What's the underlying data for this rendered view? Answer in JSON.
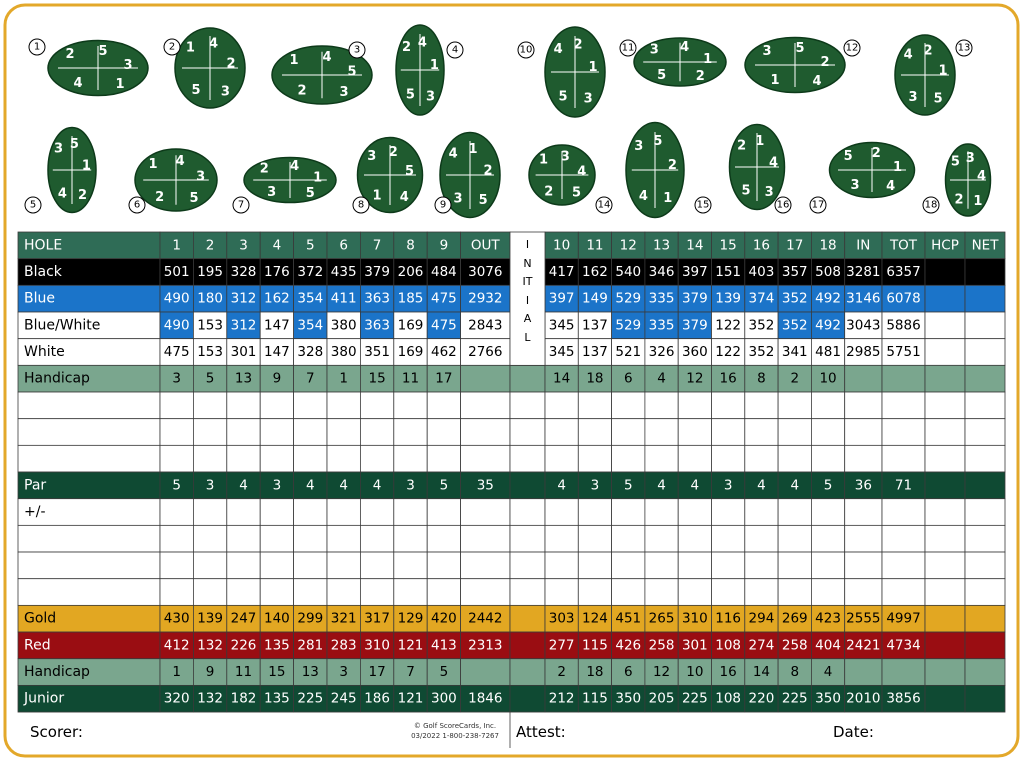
{
  "holes": [
    {
      "number": 1,
      "pins": [
        2,
        5,
        3,
        4,
        1
      ]
    },
    {
      "number": 2,
      "pins": [
        1,
        4,
        2,
        5,
        3
      ]
    },
    {
      "number": 3,
      "pins": [
        1,
        4,
        5,
        2,
        3
      ]
    },
    {
      "number": 4,
      "pins": [
        2,
        4,
        1,
        5,
        3
      ]
    },
    {
      "number": 5,
      "pins": [
        3,
        5,
        1,
        4,
        2
      ]
    },
    {
      "number": 6,
      "pins": [
        1,
        4,
        3,
        2,
        5
      ]
    },
    {
      "number": 7,
      "pins": [
        2,
        4,
        1,
        3,
        5
      ]
    },
    {
      "number": 8,
      "pins": [
        3,
        2,
        5,
        1,
        4
      ]
    },
    {
      "number": 9,
      "pins": [
        4,
        1,
        2,
        3,
        5
      ]
    },
    {
      "number": 10,
      "pins": [
        4,
        2,
        1,
        5,
        3
      ]
    },
    {
      "number": 11,
      "pins": [
        3,
        4,
        1,
        5,
        2
      ]
    },
    {
      "number": 12,
      "pins": [
        3,
        5,
        2,
        1,
        4
      ]
    },
    {
      "number": 13,
      "pins": [
        4,
        2,
        1,
        3,
        5
      ]
    },
    {
      "number": 14,
      "pins": [
        1,
        3,
        4,
        2,
        5
      ]
    },
    {
      "number": 15,
      "pins": [
        3,
        5,
        2,
        4,
        1
      ]
    },
    {
      "number": 16,
      "pins": [
        2,
        1,
        4,
        5,
        3
      ]
    },
    {
      "number": 17,
      "pins": [
        5,
        2,
        1,
        3,
        4
      ]
    },
    {
      "number": 18,
      "pins": [
        5,
        3,
        4,
        2,
        1
      ]
    }
  ],
  "table": {
    "header": {
      "label": "HOLE",
      "fill": "#2f6c56",
      "text": "#ffffff",
      "front": [
        1,
        2,
        3,
        4,
        5,
        6,
        7,
        8,
        9,
        "OUT"
      ],
      "initial": "INITIAL",
      "back": [
        10,
        11,
        12,
        13,
        14,
        15,
        16,
        17,
        18,
        "IN",
        "TOT",
        "HCP",
        "NET"
      ]
    },
    "rows": [
      {
        "label": "Black",
        "fill": "#000000",
        "text": "#ffffff",
        "front": [
          501,
          195,
          328,
          176,
          372,
          435,
          379,
          206,
          484,
          3076
        ],
        "back": [
          417,
          162,
          540,
          346,
          397,
          151,
          403,
          357,
          508,
          3281,
          6357
        ]
      },
      {
        "label": "Blue",
        "fill": "#1b74c9",
        "text": "#ffffff",
        "front": [
          490,
          180,
          312,
          162,
          354,
          411,
          363,
          185,
          475,
          2932
        ],
        "back": [
          397,
          149,
          529,
          335,
          379,
          139,
          374,
          352,
          492,
          3146,
          6078
        ]
      },
      {
        "label": "Blue/White",
        "fill": "#ffffff",
        "text": "#000000",
        "highlight": "#1b74c9",
        "highlight_front": [
          0,
          2,
          4,
          6,
          8
        ],
        "highlight_back": [
          2,
          3,
          4,
          7,
          8
        ],
        "front": [
          490,
          153,
          312,
          147,
          354,
          380,
          363,
          169,
          475,
          2843
        ],
        "back": [
          345,
          137,
          529,
          335,
          379,
          122,
          352,
          352,
          492,
          3043,
          5886
        ]
      },
      {
        "label": "White",
        "fill": "#ffffff",
        "text": "#000000",
        "front": [
          475,
          153,
          301,
          147,
          328,
          380,
          351,
          169,
          462,
          2766
        ],
        "back": [
          345,
          137,
          521,
          326,
          360,
          122,
          352,
          341,
          481,
          2985,
          5751
        ]
      },
      {
        "label": "Handicap",
        "fill": "#7aa68e",
        "text": "#000000",
        "front": [
          3,
          5,
          13,
          9,
          7,
          1,
          15,
          11,
          17
        ],
        "back": [
          14,
          18,
          6,
          4,
          12,
          16,
          8,
          2,
          10
        ]
      },
      null,
      null,
      null,
      {
        "label": "Par",
        "fill": "#0f4a33",
        "text": "#ffffff",
        "front": [
          5,
          3,
          4,
          3,
          4,
          4,
          4,
          3,
          5,
          35
        ],
        "back": [
          4,
          3,
          5,
          4,
          4,
          3,
          4,
          4,
          5,
          36,
          71
        ]
      },
      {
        "label": "+/-",
        "fill": "#ffffff",
        "text": "#000000",
        "front": [],
        "back": []
      },
      null,
      null,
      null,
      {
        "label": "Gold",
        "fill": "#e2a722",
        "text": "#000000",
        "front": [
          430,
          139,
          247,
          140,
          299,
          321,
          317,
          129,
          420,
          2442
        ],
        "back": [
          303,
          124,
          451,
          265,
          310,
          116,
          294,
          269,
          423,
          2555,
          4997
        ]
      },
      {
        "label": "Red",
        "fill": "#9a0d12",
        "text": "#ffffff",
        "front": [
          412,
          132,
          226,
          135,
          281,
          283,
          310,
          121,
          413,
          2313
        ],
        "back": [
          277,
          115,
          426,
          258,
          301,
          108,
          274,
          258,
          404,
          2421,
          4734
        ]
      },
      {
        "label": "Handicap",
        "fill": "#7aa68e",
        "text": "#000000",
        "front": [
          1,
          9,
          11,
          15,
          13,
          3,
          17,
          7,
          5
        ],
        "back": [
          2,
          18,
          6,
          12,
          10,
          16,
          14,
          8,
          4
        ]
      },
      {
        "label": "Junior",
        "fill": "#0f4a33",
        "text": "#ffffff",
        "front": [
          320,
          132,
          182,
          135,
          225,
          245,
          186,
          121,
          300,
          1846
        ],
        "back": [
          212,
          115,
          350,
          205,
          225,
          108,
          220,
          225,
          350,
          2010,
          3856
        ]
      }
    ]
  },
  "footer": {
    "scorer": "Scorer:",
    "copyright": "© Golf ScoreCards, Inc.",
    "copyright_detail": "03/2022  1-800-238-7267",
    "attest": "Attest:",
    "date": "Date:"
  }
}
